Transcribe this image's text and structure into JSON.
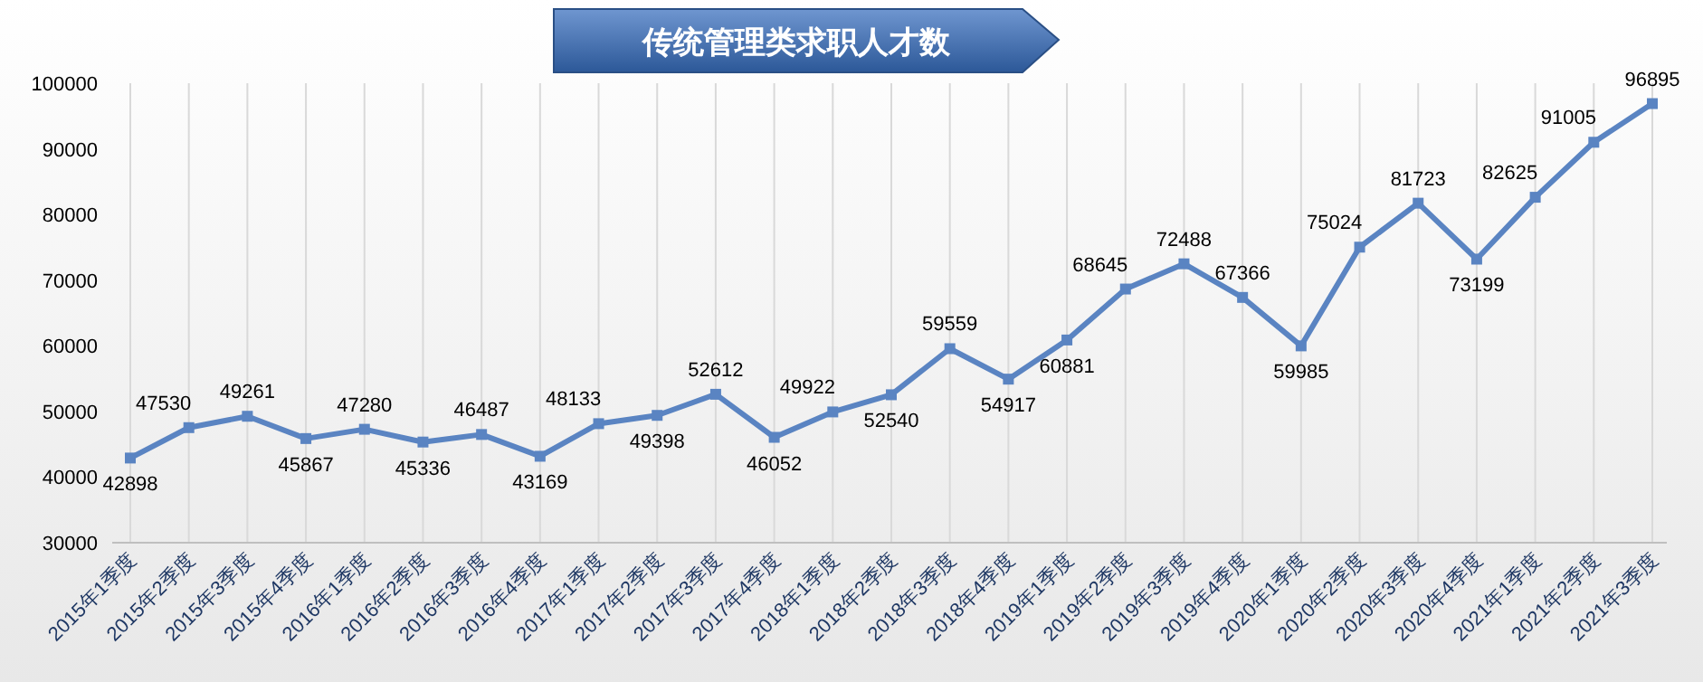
{
  "chart_data": {
    "type": "line",
    "title": "传统管理类求职人才数",
    "categories": [
      "2015年1季度",
      "2015年2季度",
      "2015年3季度",
      "2015年4季度",
      "2016年1季度",
      "2016年2季度",
      "2016年3季度",
      "2016年4季度",
      "2017年1季度",
      "2017年2季度",
      "2017年3季度",
      "2017年4季度",
      "2018年1季度",
      "2018年2季度",
      "2018年3季度",
      "2018年4季度",
      "2019年1季度",
      "2019年2季度",
      "2019年3季度",
      "2019年4季度",
      "2020年1季度",
      "2020年2季度",
      "2020年3季度",
      "2020年4季度",
      "2021年1季度",
      "2021年2季度",
      "2021年3季度"
    ],
    "series": [
      {
        "color": "#5a84c2",
        "values": [
          42898,
          47530,
          49261,
          45867,
          47280,
          45336,
          46487,
          43169,
          48133,
          49398,
          52612,
          46052,
          49922,
          52540,
          59559,
          54917,
          60881,
          68645,
          72488,
          67366,
          59985,
          75024,
          81723,
          73199,
          82625,
          91005,
          96895
        ]
      }
    ],
    "ylim": [
      30000,
      100000
    ],
    "yticks": [
      30000,
      40000,
      50000,
      60000,
      70000,
      80000,
      90000,
      100000
    ],
    "grid": "x",
    "data_labels": true,
    "marker": "square",
    "line_style": "solid"
  }
}
